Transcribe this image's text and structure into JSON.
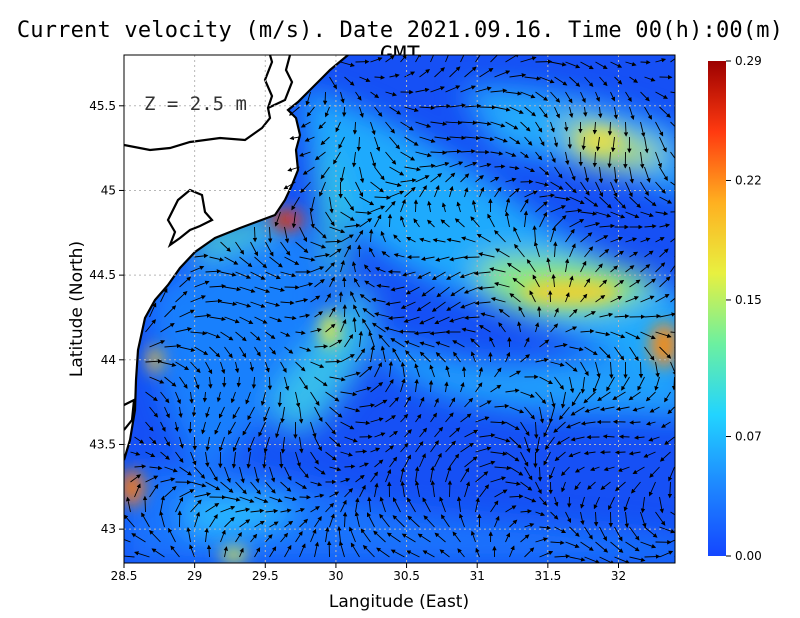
{
  "title": "Current velocity (m/s). Date 2021.09.16. Time 00(h):00(m) GMT",
  "depth_label": "Z = 2.5 m",
  "x_axis": {
    "label": "Langitude (East)",
    "ticks": [
      "28.5",
      "29",
      "29.5",
      "30",
      "30.5",
      "31",
      "31.5",
      "32"
    ]
  },
  "y_axis": {
    "label": "Latitude (North)",
    "ticks": [
      "43",
      "43.5",
      "44",
      "44.5",
      "45",
      "45.5"
    ]
  },
  "colorbar": {
    "ticks": [
      "0.00",
      "0.07",
      "0.15",
      "0.22",
      "0.29"
    ],
    "colors": [
      "#1446ff",
      "#1e88ff",
      "#22d4ff",
      "#6cf0a0",
      "#e8f040",
      "#ffb020",
      "#ff3a10",
      "#9c0000"
    ]
  },
  "map_data": {
    "lon_range": [
      28.5,
      32.4
    ],
    "lat_range": [
      42.8,
      45.8
    ],
    "speed_range": [
      0.0,
      0.29
    ],
    "hotspots": [
      {
        "lon": 29.65,
        "lat": 44.8,
        "speed": 0.28
      },
      {
        "lon": 31.55,
        "lat": 44.42,
        "speed": 0.21
      },
      {
        "lon": 32.3,
        "lat": 44.1,
        "speed": 0.24
      },
      {
        "lon": 31.8,
        "lat": 45.3,
        "speed": 0.2
      },
      {
        "lon": 28.55,
        "lat": 43.2,
        "speed": 0.23
      },
      {
        "lon": 29.95,
        "lat": 44.1,
        "speed": 0.15
      },
      {
        "lon": 28.7,
        "lat": 44.0,
        "speed": 0.17
      }
    ]
  }
}
